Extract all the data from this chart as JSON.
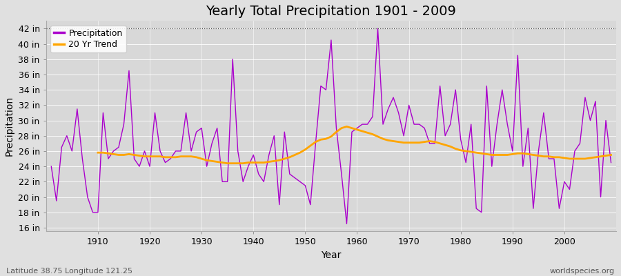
{
  "title": "Yearly Total Precipitation 1901 - 2009",
  "xlabel": "Year",
  "ylabel": "Precipitation",
  "lat_lon_label": "Latitude 38.75 Longitude 121.25",
  "source_label": "worldspecies.org",
  "years": [
    1901,
    1902,
    1903,
    1904,
    1905,
    1906,
    1907,
    1908,
    1909,
    1910,
    1911,
    1912,
    1913,
    1914,
    1915,
    1916,
    1917,
    1918,
    1919,
    1920,
    1921,
    1922,
    1923,
    1924,
    1925,
    1926,
    1927,
    1928,
    1929,
    1930,
    1931,
    1932,
    1933,
    1934,
    1935,
    1936,
    1937,
    1938,
    1939,
    1940,
    1941,
    1942,
    1943,
    1944,
    1945,
    1946,
    1947,
    1948,
    1949,
    1950,
    1951,
    1952,
    1953,
    1954,
    1955,
    1956,
    1957,
    1958,
    1959,
    1960,
    1961,
    1962,
    1963,
    1964,
    1965,
    1966,
    1967,
    1968,
    1969,
    1970,
    1971,
    1972,
    1973,
    1974,
    1975,
    1976,
    1977,
    1978,
    1979,
    1980,
    1981,
    1982,
    1983,
    1984,
    1985,
    1986,
    1987,
    1988,
    1989,
    1990,
    1991,
    1992,
    1993,
    1994,
    1995,
    1996,
    1997,
    1998,
    1999,
    2000,
    2001,
    2002,
    2003,
    2004,
    2005,
    2006,
    2007,
    2008,
    2009
  ],
  "precipitation": [
    24.0,
    19.5,
    26.5,
    28.0,
    26.0,
    31.5,
    25.0,
    20.0,
    18.0,
    18.0,
    31.0,
    25.0,
    26.0,
    26.5,
    29.5,
    36.5,
    25.0,
    24.0,
    26.0,
    24.0,
    31.0,
    26.0,
    24.5,
    25.0,
    26.0,
    26.0,
    31.0,
    26.0,
    28.5,
    29.0,
    24.0,
    27.0,
    29.0,
    22.0,
    22.0,
    38.0,
    26.0,
    22.0,
    24.0,
    25.5,
    23.0,
    22.0,
    25.5,
    28.0,
    19.0,
    28.5,
    23.0,
    22.5,
    22.0,
    21.5,
    19.0,
    27.0,
    34.5,
    34.0,
    40.5,
    29.0,
    23.0,
    16.5,
    28.5,
    29.0,
    29.5,
    29.5,
    30.5,
    42.0,
    29.5,
    31.5,
    33.0,
    31.0,
    28.0,
    32.0,
    29.5,
    29.5,
    29.0,
    27.0,
    27.0,
    34.5,
    28.0,
    29.5,
    34.0,
    27.5,
    24.5,
    29.5,
    18.5,
    18.0,
    34.5,
    24.0,
    29.5,
    34.0,
    29.5,
    26.0,
    38.5,
    24.0,
    29.0,
    18.5,
    26.0,
    31.0,
    25.0,
    25.0,
    18.5,
    22.0,
    21.0,
    26.0,
    27.0,
    33.0,
    30.0,
    32.5,
    20.0,
    30.0,
    24.5
  ],
  "trend": [
    null,
    null,
    null,
    null,
    null,
    null,
    null,
    null,
    null,
    25.8,
    25.8,
    25.7,
    25.6,
    25.5,
    25.5,
    25.6,
    25.5,
    25.4,
    25.3,
    25.3,
    25.3,
    25.3,
    25.2,
    25.2,
    25.2,
    25.3,
    25.3,
    25.3,
    25.2,
    25.0,
    24.8,
    24.7,
    24.6,
    24.5,
    24.4,
    24.4,
    24.4,
    24.4,
    24.5,
    24.5,
    24.5,
    24.5,
    24.6,
    24.7,
    24.8,
    25.0,
    25.2,
    25.5,
    25.8,
    26.2,
    26.7,
    27.2,
    27.5,
    27.6,
    27.9,
    28.5,
    29.0,
    29.2,
    29.0,
    28.8,
    28.6,
    28.4,
    28.2,
    27.9,
    27.6,
    27.4,
    27.3,
    27.2,
    27.1,
    27.1,
    27.1,
    27.1,
    27.2,
    27.3,
    27.2,
    27.0,
    26.8,
    26.6,
    26.3,
    26.1,
    26.0,
    25.9,
    25.8,
    25.7,
    25.6,
    25.5,
    25.5,
    25.5,
    25.5,
    25.6,
    25.7,
    25.7,
    25.6,
    25.5,
    25.4,
    25.3,
    25.3,
    25.2,
    25.2,
    25.1,
    25.0,
    25.0,
    25.0,
    25.0,
    25.1,
    25.2,
    25.3,
    25.4,
    25.5
  ],
  "precip_color": "#AA00CC",
  "trend_color": "#FFA500",
  "fig_bg_color": "#E0E0E0",
  "plot_bg_color": "#D8D8D8",
  "grid_color": "#FFFFFF",
  "spine_color": "#AAAAAA",
  "ylim": [
    15.5,
    43.0
  ],
  "yticks": [
    16,
    18,
    20,
    22,
    24,
    26,
    28,
    30,
    32,
    34,
    36,
    38,
    40,
    42
  ],
  "ytick_labels": [
    "16 in",
    "18 in",
    "20 in",
    "22 in",
    "24 in",
    "26 in",
    "28 in",
    "30 in",
    "32 in",
    "34 in",
    "36 in",
    "38 in",
    "40 in",
    "42 in"
  ],
  "xticks": [
    1910,
    1920,
    1930,
    1940,
    1950,
    1960,
    1970,
    1980,
    1990,
    2000
  ],
  "xlim": [
    1900,
    2010
  ],
  "title_fontsize": 14,
  "axis_label_fontsize": 10,
  "tick_fontsize": 9,
  "legend_fontsize": 9,
  "footer_fontsize": 8,
  "precip_linewidth": 1.0,
  "trend_linewidth": 2.0
}
